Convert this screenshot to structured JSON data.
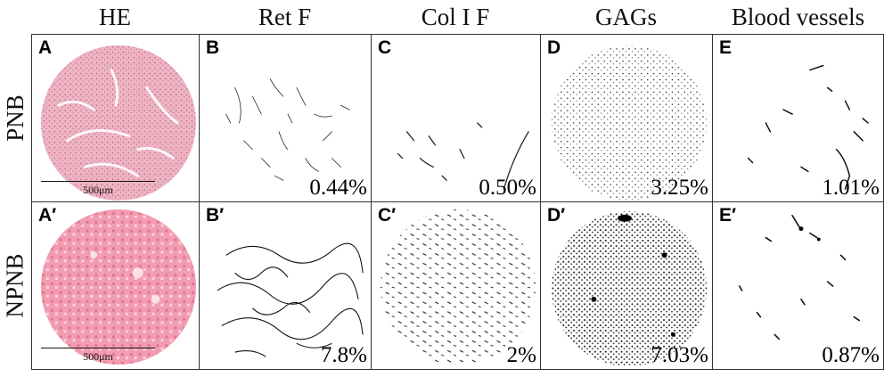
{
  "columns": [
    "HE",
    "Ret F",
    "Col I F",
    "GAGs",
    "Blood vessels"
  ],
  "rows": [
    "PNB",
    "NPNB"
  ],
  "panels": [
    {
      "label": "A",
      "pct": ""
    },
    {
      "label": "B",
      "pct": "0.44%"
    },
    {
      "label": "C",
      "pct": "0.50%"
    },
    {
      "label": "D",
      "pct": "3.25%"
    },
    {
      "label": "E",
      "pct": "1.01%"
    },
    {
      "label": "A′",
      "pct": ""
    },
    {
      "label": "B′",
      "pct": "7.8%"
    },
    {
      "label": "C′",
      "pct": "2%"
    },
    {
      "label": "D′",
      "pct": "7.03%"
    },
    {
      "label": "E′",
      "pct": "0.87%"
    }
  ],
  "scale_bar": "500μm",
  "colors": {
    "he_pnb": "#e9a9ba",
    "he_npnb": "#f08fa6",
    "stain": "#000000",
    "border": "#333333"
  }
}
